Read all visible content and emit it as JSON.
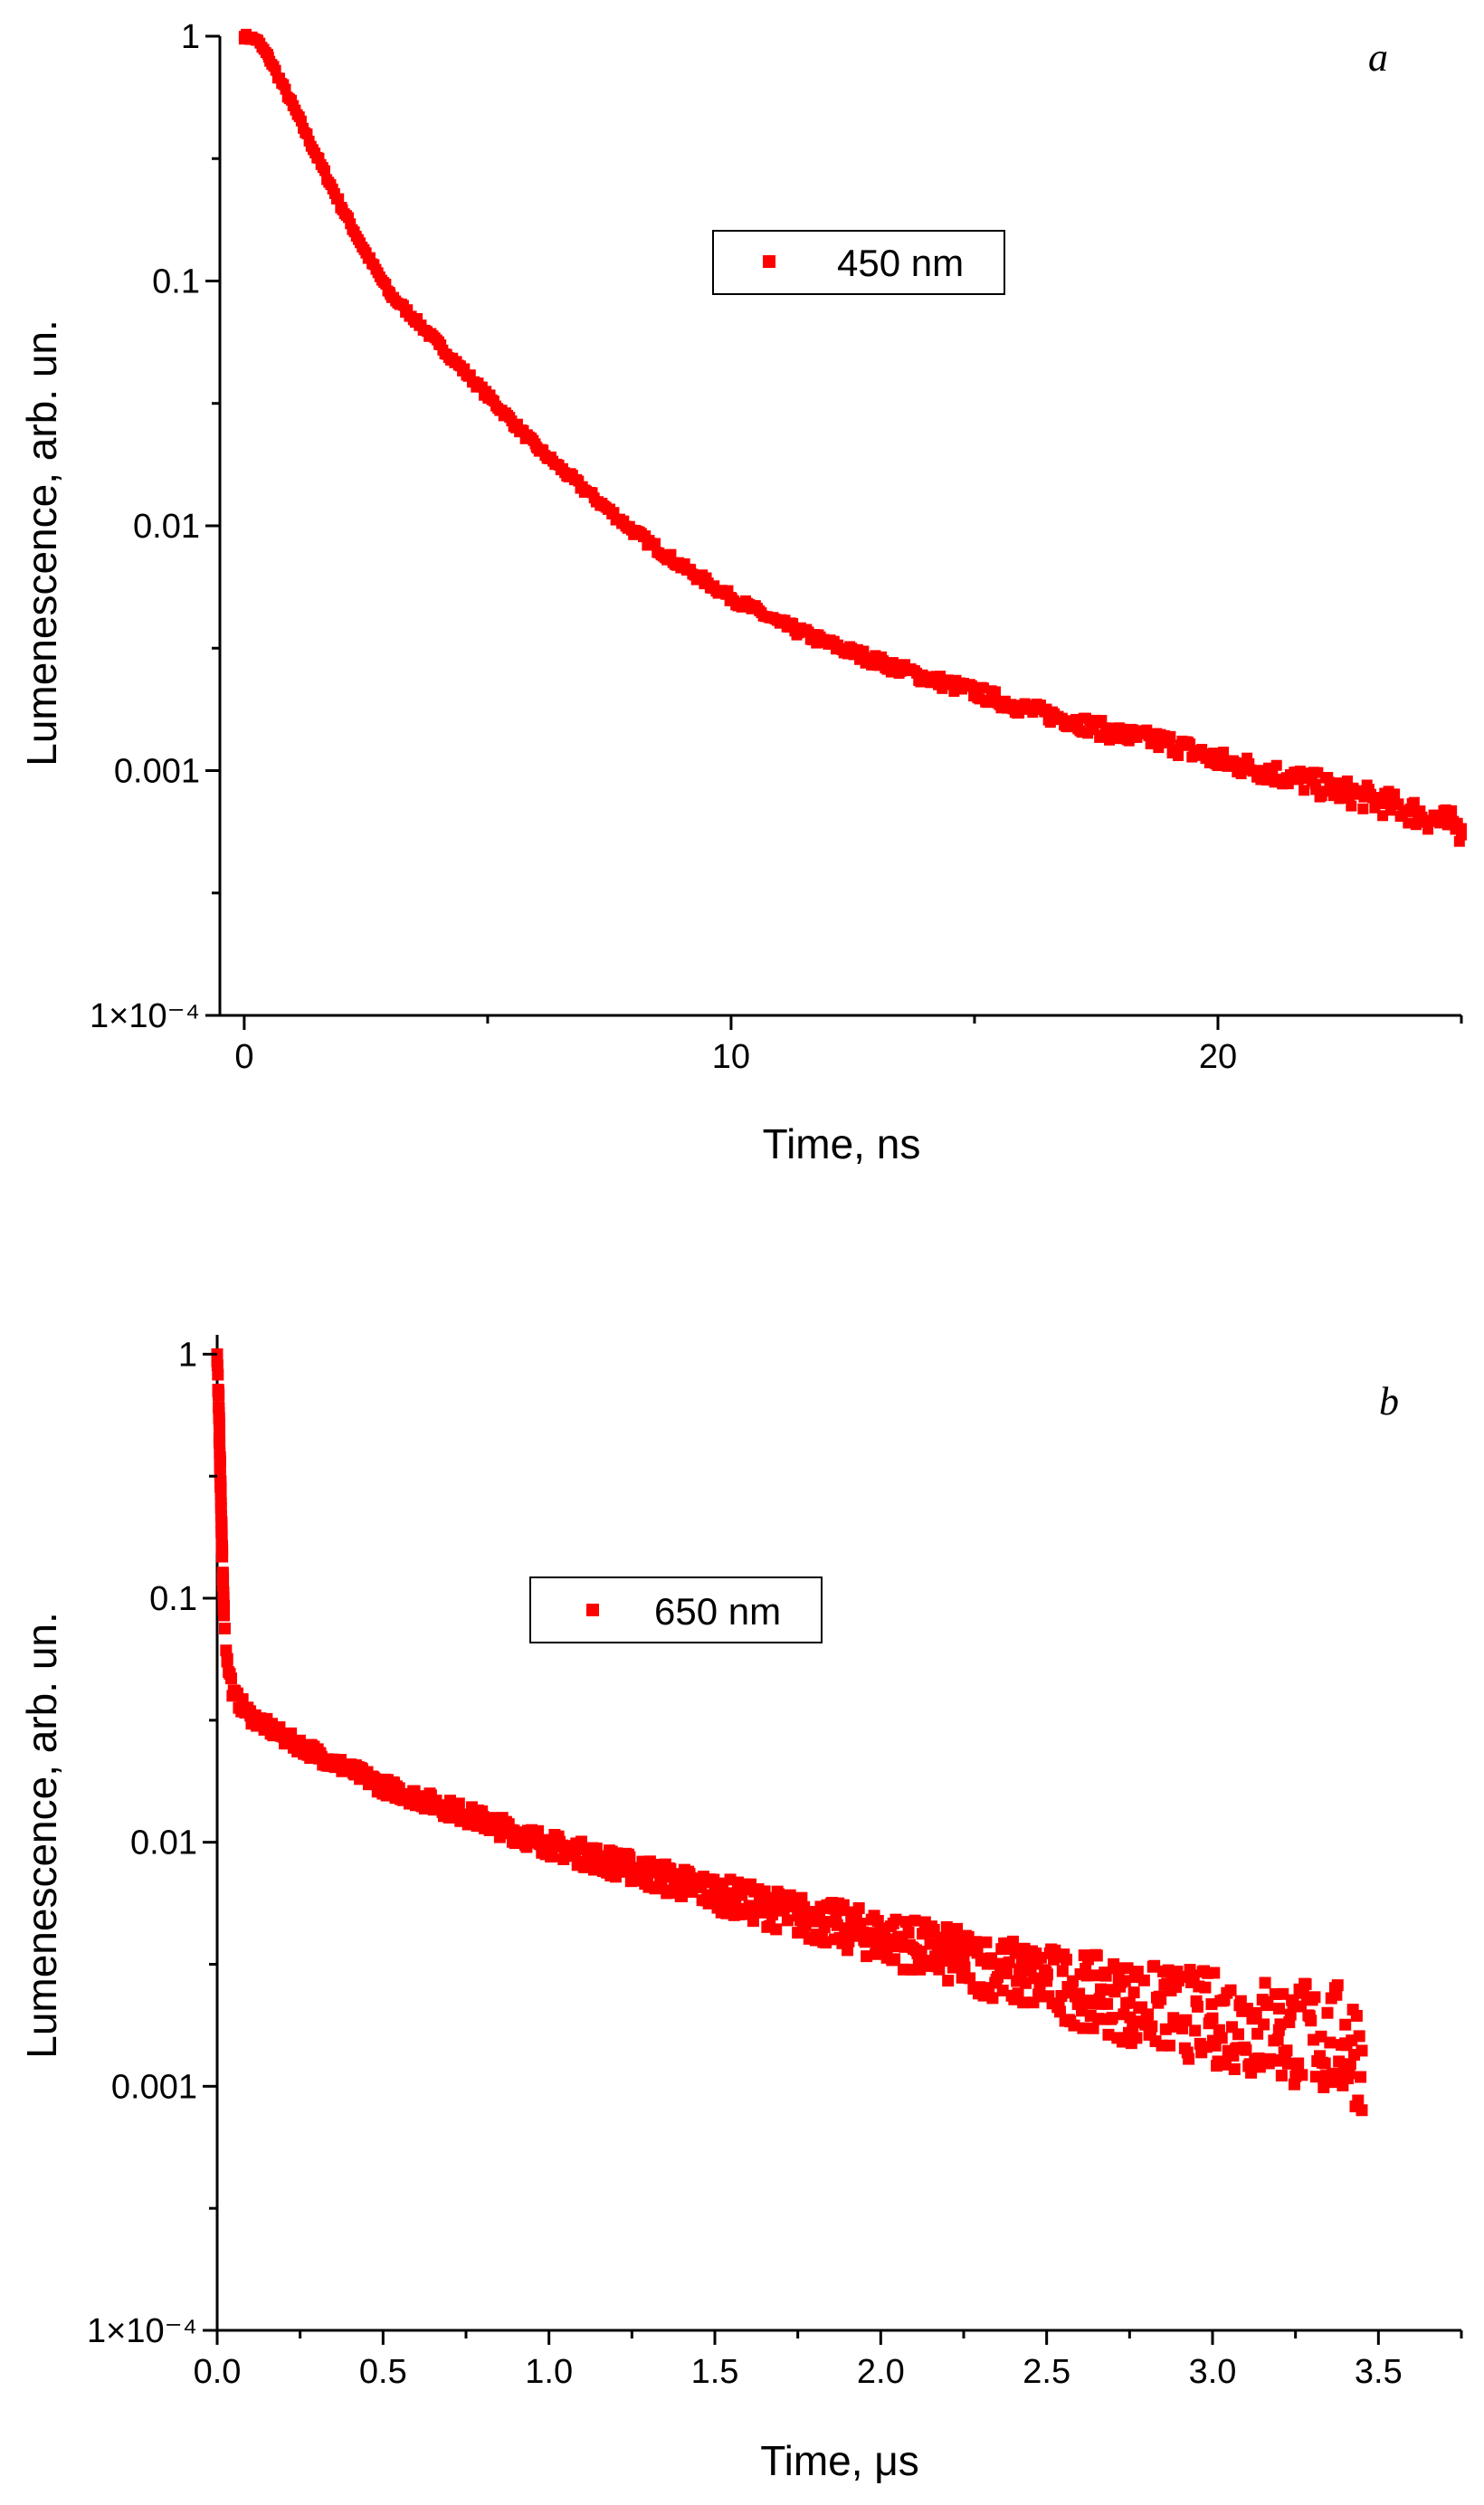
{
  "chart_data": [
    {
      "type": "scatter",
      "panel_label": "a",
      "xlabel": "Time, ns",
      "ylabel": "Lumenescence, arb. un.",
      "x_scale": "linear",
      "y_scale": "log",
      "xlim": [
        -0.5,
        25
      ],
      "ylim": [
        0.0001,
        1
      ],
      "x_ticks": [
        {
          "v": 0,
          "label": "0"
        },
        {
          "v": 10,
          "label": "10"
        },
        {
          "v": 20,
          "label": "20"
        }
      ],
      "y_ticks": [
        {
          "v": 1,
          "label": "1"
        },
        {
          "v": 0.1,
          "label": "0.1"
        },
        {
          "v": 0.01,
          "label": "0.01"
        },
        {
          "v": 0.001,
          "label": "0.001"
        },
        {
          "v": 0.0001,
          "label": "1×10⁻⁴"
        }
      ],
      "legend_position": "upper-center",
      "grid": false,
      "series": [
        {
          "name": "450 nm",
          "color": "#ff0000",
          "marker": "square",
          "x": [
            0,
            0.25,
            0.5,
            1,
            1.5,
            2,
            2.5,
            3,
            3.5,
            4,
            5,
            6,
            7,
            8,
            9,
            10,
            11,
            12,
            13,
            14,
            15,
            16,
            17,
            18,
            19,
            20,
            21,
            22,
            23,
            24,
            25
          ],
          "y": [
            1.0,
            0.97,
            0.82,
            0.52,
            0.32,
            0.2,
            0.13,
            0.088,
            0.07,
            0.055,
            0.034,
            0.021,
            0.014,
            0.0095,
            0.0068,
            0.0051,
            0.004,
            0.0033,
            0.0028,
            0.0024,
            0.0021,
            0.0018,
            0.0016,
            0.0014,
            0.0013,
            0.0011,
            0.001,
            0.00088,
            0.00078,
            0.00068,
            0.00058
          ]
        }
      ]
    },
    {
      "type": "scatter",
      "panel_label": "b",
      "xlabel": "Time, μs",
      "ylabel": "Lumenescence, arb. un.",
      "x_scale": "linear",
      "y_scale": "log",
      "xlim": [
        0,
        3.75
      ],
      "ylim": [
        0.0001,
        1.2
      ],
      "x_ticks": [
        {
          "v": 0,
          "label": "0.0"
        },
        {
          "v": 0.5,
          "label": "0.5"
        },
        {
          "v": 1,
          "label": "1.0"
        },
        {
          "v": 1.5,
          "label": "1.5"
        },
        {
          "v": 2,
          "label": "2.0"
        },
        {
          "v": 2.5,
          "label": "2.5"
        },
        {
          "v": 3,
          "label": "3.0"
        },
        {
          "v": 3.5,
          "label": "3.5"
        }
      ],
      "y_ticks": [
        {
          "v": 1,
          "label": "1"
        },
        {
          "v": 0.1,
          "label": "0.1"
        },
        {
          "v": 0.01,
          "label": "0.01"
        },
        {
          "v": 0.001,
          "label": "0.001"
        },
        {
          "v": 0.0001,
          "label": "1×10⁻⁴"
        }
      ],
      "legend_position": "upper-center",
      "grid": false,
      "series": [
        {
          "name": "650 nm",
          "color": "#ff0000",
          "marker": "square",
          "x": [
            0,
            0.005,
            0.01,
            0.015,
            0.02,
            0.03,
            0.05,
            0.1,
            0.2,
            0.3,
            0.5,
            0.75,
            1.0,
            1.25,
            1.5,
            1.75,
            2.0,
            2.25,
            2.5,
            2.75,
            3.0,
            3.2,
            3.4,
            3.45
          ],
          "y": [
            1.0,
            0.6,
            0.3,
            0.15,
            0.09,
            0.055,
            0.04,
            0.033,
            0.027,
            0.023,
            0.017,
            0.013,
            0.0098,
            0.0078,
            0.0062,
            0.005,
            0.0041,
            0.0033,
            0.0027,
            0.0022,
            0.0019,
            0.0017,
            0.0015,
            0.0014
          ]
        }
      ]
    }
  ]
}
